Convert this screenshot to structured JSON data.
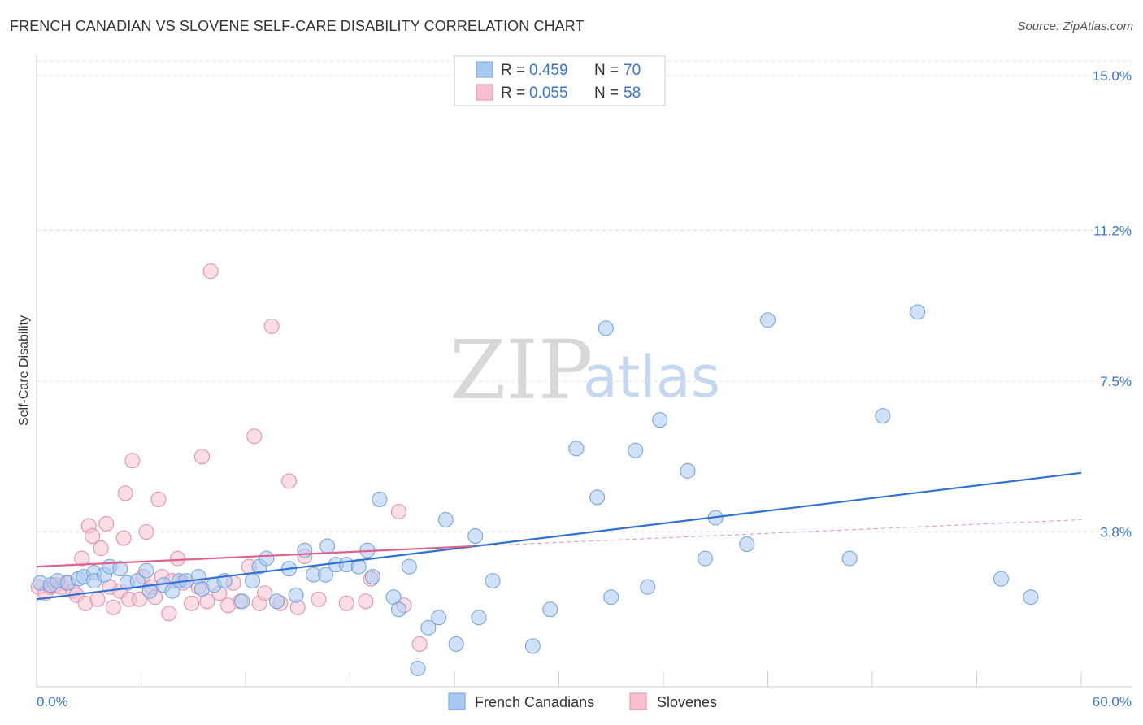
{
  "title": "FRENCH CANADIAN VS SLOVENE SELF-CARE DISABILITY CORRELATION CHART",
  "source": "Source: ZipAtlas.com",
  "watermark": {
    "zip": "ZIP",
    "atlas": "atlas"
  },
  "legend_top": [
    {
      "r_label": "R = ",
      "r_value": "0.459",
      "n_label": "N = ",
      "n_value": "70",
      "color": "#a9c8f0",
      "stroke": "#6f9fdb"
    },
    {
      "r_label": "R = ",
      "r_value": "0.055",
      "n_label": "N = ",
      "n_value": "58",
      "color": "#f7c1d1",
      "stroke": "#e48aa6"
    }
  ],
  "colors": {
    "blue_line": "#2f6fd6",
    "pink_line": "#e0608d",
    "grid": "#dddddd",
    "tick_text": "#3a74c9"
  },
  "chart_data": {
    "type": "scatter",
    "title": "FRENCH CANADIAN VS SLOVENE SELF-CARE DISABILITY CORRELATION CHART",
    "xlabel": "",
    "ylabel": "Self-Care Disability",
    "xlim": [
      0,
      60
    ],
    "ylim": [
      0,
      15.5
    ],
    "x_tick_labels": [
      "0.0%",
      "60.0%"
    ],
    "y_ticks": [
      3.8,
      7.5,
      11.2,
      15.0
    ],
    "y_tick_labels": [
      "3.8%",
      "7.5%",
      "11.2%",
      "15.0%"
    ],
    "series": [
      {
        "name": "French Canadians",
        "color": "#a9c8f0",
        "trend": {
          "x0": 0,
          "y0": 2.15,
          "x1": 60,
          "y1": 5.25
        },
        "points": [
          [
            0.2,
            2.55
          ],
          [
            0.8,
            2.5
          ],
          [
            1.2,
            2.6
          ],
          [
            1.8,
            2.55
          ],
          [
            2.4,
            2.65
          ],
          [
            2.7,
            2.7
          ],
          [
            3.3,
            2.8
          ],
          [
            3.3,
            2.6
          ],
          [
            3.9,
            2.75
          ],
          [
            4.2,
            2.95
          ],
          [
            4.8,
            2.9
          ],
          [
            5.2,
            2.55
          ],
          [
            5.8,
            2.6
          ],
          [
            6.3,
            2.85
          ],
          [
            6.5,
            2.35
          ],
          [
            7.3,
            2.5
          ],
          [
            7.8,
            2.35
          ],
          [
            8.2,
            2.6
          ],
          [
            8.6,
            2.6
          ],
          [
            9.3,
            2.7
          ],
          [
            9.5,
            2.4
          ],
          [
            10.2,
            2.5
          ],
          [
            10.8,
            2.6
          ],
          [
            11.8,
            2.1
          ],
          [
            12.4,
            2.6
          ],
          [
            12.8,
            2.95
          ],
          [
            13.2,
            3.15
          ],
          [
            13.8,
            2.1
          ],
          [
            14.5,
            2.9
          ],
          [
            14.9,
            2.25
          ],
          [
            15.4,
            3.35
          ],
          [
            15.9,
            2.75
          ],
          [
            16.6,
            2.75
          ],
          [
            16.7,
            3.45
          ],
          [
            17.2,
            3.0
          ],
          [
            17.8,
            3.0
          ],
          [
            18.5,
            2.95
          ],
          [
            19.0,
            3.35
          ],
          [
            19.3,
            2.7
          ],
          [
            19.7,
            4.6
          ],
          [
            20.5,
            2.2
          ],
          [
            20.8,
            1.9
          ],
          [
            21.4,
            2.95
          ],
          [
            21.9,
            0.45
          ],
          [
            22.5,
            1.45
          ],
          [
            23.1,
            1.7
          ],
          [
            23.5,
            4.1
          ],
          [
            24.1,
            1.05
          ],
          [
            25.2,
            3.7
          ],
          [
            25.4,
            1.7
          ],
          [
            26.2,
            2.6
          ],
          [
            28.5,
            1.0
          ],
          [
            29.5,
            1.9
          ],
          [
            31.0,
            5.85
          ],
          [
            32.2,
            4.65
          ],
          [
            32.7,
            8.8
          ],
          [
            33.0,
            2.2
          ],
          [
            34.4,
            5.8
          ],
          [
            35.1,
            2.45
          ],
          [
            35.8,
            6.55
          ],
          [
            37.4,
            5.3
          ],
          [
            38.4,
            3.15
          ],
          [
            39.0,
            4.15
          ],
          [
            40.8,
            3.5
          ],
          [
            42.0,
            9.0
          ],
          [
            46.7,
            3.15
          ],
          [
            48.6,
            6.65
          ],
          [
            50.6,
            9.2
          ],
          [
            55.4,
            2.65
          ],
          [
            57.1,
            2.2
          ]
        ]
      },
      {
        "name": "Slovenes",
        "color": "#f7c1d1",
        "trend": {
          "x0": 0,
          "y0": 2.95,
          "x1": 25,
          "y1": 3.45,
          "dash_x1": 60,
          "dash_y1": 4.1
        },
        "points": [
          [
            0.1,
            2.45
          ],
          [
            0.5,
            2.3
          ],
          [
            0.8,
            2.45
          ],
          [
            1.1,
            2.5
          ],
          [
            1.4,
            2.45
          ],
          [
            1.7,
            2.55
          ],
          [
            2.1,
            2.35
          ],
          [
            2.3,
            2.25
          ],
          [
            2.6,
            3.15
          ],
          [
            2.8,
            2.05
          ],
          [
            3.0,
            3.95
          ],
          [
            3.2,
            3.7
          ],
          [
            3.5,
            2.15
          ],
          [
            3.7,
            3.4
          ],
          [
            4.0,
            4.0
          ],
          [
            4.2,
            2.45
          ],
          [
            4.4,
            1.95
          ],
          [
            4.8,
            2.35
          ],
          [
            5.0,
            3.65
          ],
          [
            5.1,
            4.75
          ],
          [
            5.3,
            2.15
          ],
          [
            5.5,
            5.55
          ],
          [
            5.9,
            2.15
          ],
          [
            6.1,
            2.7
          ],
          [
            6.3,
            3.8
          ],
          [
            6.6,
            2.45
          ],
          [
            6.8,
            2.2
          ],
          [
            7.0,
            4.6
          ],
          [
            7.2,
            2.7
          ],
          [
            7.6,
            1.8
          ],
          [
            7.8,
            2.6
          ],
          [
            8.1,
            3.15
          ],
          [
            8.4,
            2.55
          ],
          [
            8.9,
            2.05
          ],
          [
            9.3,
            2.45
          ],
          [
            9.5,
            5.65
          ],
          [
            9.8,
            2.1
          ],
          [
            10.5,
            2.3
          ],
          [
            11.0,
            2.0
          ],
          [
            11.3,
            2.55
          ],
          [
            11.7,
            2.1
          ],
          [
            12.2,
            2.95
          ],
          [
            12.5,
            6.15
          ],
          [
            12.8,
            2.05
          ],
          [
            13.1,
            2.3
          ],
          [
            13.5,
            8.85
          ],
          [
            14.0,
            2.05
          ],
          [
            14.5,
            5.05
          ],
          [
            15.0,
            1.95
          ],
          [
            15.4,
            3.2
          ],
          [
            16.2,
            2.15
          ],
          [
            17.8,
            2.05
          ],
          [
            18.9,
            2.1
          ],
          [
            19.2,
            2.65
          ],
          [
            20.8,
            4.3
          ],
          [
            10.0,
            10.2
          ],
          [
            21.1,
            2.0
          ],
          [
            22.0,
            1.05
          ]
        ]
      }
    ]
  },
  "bottom_legend": [
    {
      "label": "French Canadians"
    },
    {
      "label": "Slovenes"
    }
  ]
}
